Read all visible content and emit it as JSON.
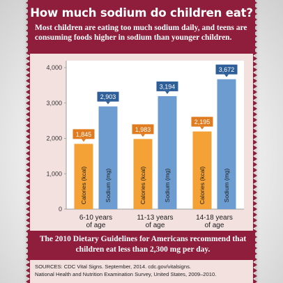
{
  "header": {
    "title": "How much sodium do children eat?",
    "subtitle": "Most children are eating too much sodium daily, and teens are consuming foods higher in sodium than younger children."
  },
  "chart_data": {
    "type": "bar",
    "categories": [
      "6-10 years of age",
      "11-13 years of age",
      "14-18 years of age"
    ],
    "category_lines": [
      [
        "6-10 years",
        "of age"
      ],
      [
        "11-13 years",
        "of age"
      ],
      [
        "14-18 years",
        "of age"
      ]
    ],
    "series": [
      {
        "name": "Calories (kcal)",
        "values": [
          1845,
          1983,
          2195
        ],
        "labels": [
          "1,845",
          "1,983",
          "2,195"
        ],
        "color": "#f4a135",
        "label_color": "#e07b20"
      },
      {
        "name": "Sodium (mg)",
        "values": [
          2903,
          3194,
          3672
        ],
        "labels": [
          "2,903",
          "3,194",
          "3,672"
        ],
        "color": "#6d9dd0",
        "label_color": "#2f5f98"
      }
    ],
    "yticks": [
      0,
      1000,
      2000,
      3000,
      4000
    ],
    "ytick_labels": [
      "0",
      "1,000",
      "2,000",
      "3,000",
      "4,000"
    ],
    "ylim": [
      0,
      4000
    ],
    "grid": false
  },
  "note": {
    "text": "The 2010 Dietary Guidelines for Americans recommend that children eat less than 2,300 mg per day."
  },
  "sources": {
    "line1": "SOURCES: CDC Vital Signs. September, 2014. cdc.gov/vitalsigns.",
    "line2": "National Health and Nutrition Examination Survey, United States, 2009–2010."
  },
  "colors": {
    "maroon": "#8f1d3c",
    "panel": "#f3e1e0",
    "chart_bg": "#ffffff"
  }
}
